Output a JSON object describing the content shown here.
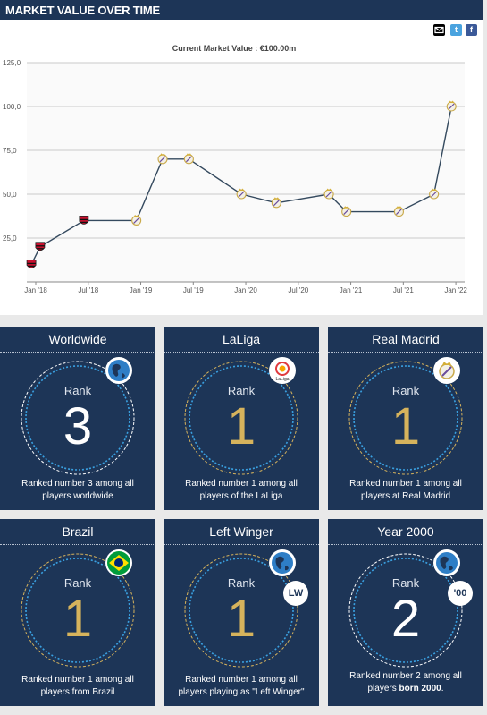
{
  "header": {
    "title": "MARKET VALUE OVER TIME"
  },
  "share": {
    "email_icon": "envelope-icon",
    "twitter_icon": "twitter-icon",
    "facebook_icon": "facebook-icon",
    "twitter_label": "t",
    "facebook_label": "f"
  },
  "chart_data": {
    "type": "line",
    "title": "Current Market Value : €100.00m",
    "xlabel": "",
    "ylabel": "",
    "ylim": [
      0,
      125
    ],
    "y_ticks": [
      "125,0",
      "100,0",
      "75,0",
      "50,0",
      "25,0"
    ],
    "x_ticks": [
      "Jan '18",
      "Jul '18",
      "Jan '19",
      "Jul '19",
      "Jan '20",
      "Jul '20",
      "Jan '21",
      "Jul '21",
      "Jan '22"
    ],
    "grid": true,
    "series": [
      {
        "values": [
          {
            "date": "2017-12",
            "y": 10,
            "club": "Flamengo"
          },
          {
            "date": "2018-01",
            "y": 20,
            "club": "Flamengo"
          },
          {
            "date": "2018-06",
            "y": 35,
            "club": "Flamengo"
          },
          {
            "date": "2018-12",
            "y": 35,
            "club": "Real Madrid"
          },
          {
            "date": "2019-03",
            "y": 70,
            "club": "Real Madrid"
          },
          {
            "date": "2019-06",
            "y": 70,
            "club": "Real Madrid"
          },
          {
            "date": "2019-12",
            "y": 50,
            "club": "Real Madrid"
          },
          {
            "date": "2020-04",
            "y": 45,
            "club": "Real Madrid"
          },
          {
            "date": "2020-10",
            "y": 50,
            "club": "Real Madrid"
          },
          {
            "date": "2020-12",
            "y": 40,
            "club": "Real Madrid"
          },
          {
            "date": "2021-06",
            "y": 40,
            "club": "Real Madrid"
          },
          {
            "date": "2021-10",
            "y": 50,
            "club": "Real Madrid"
          },
          {
            "date": "2021-12",
            "y": 100,
            "club": "Real Madrid"
          }
        ]
      }
    ],
    "colors": {
      "line": "#34495e",
      "flamengo": "#c8102e",
      "real_madrid": "#d4af37"
    }
  },
  "cards": [
    {
      "title": "Worldwide",
      "rank_label": "Rank",
      "rank": "3",
      "desc": "Ranked number 3 among all players worldwide",
      "badge_icon": "globe-icon",
      "num_color": "#ffffff"
    },
    {
      "title": "LaLiga",
      "rank_label": "Rank",
      "rank": "1",
      "desc": "Ranked number 1 among all players of the LaLiga",
      "badge_icon": "laliga-logo-icon",
      "num_color": "#d6b35c"
    },
    {
      "title": "Real Madrid",
      "rank_label": "Rank",
      "rank": "1",
      "desc": "Ranked number 1 among all players at Real Madrid",
      "badge_icon": "real-madrid-crest-icon",
      "num_color": "#d6b35c"
    },
    {
      "title": "Brazil",
      "rank_label": "Rank",
      "rank": "1",
      "desc": "Ranked number 1 among all players from Brazil",
      "badge_icon": "brazil-flag-icon",
      "num_color": "#d6b35c"
    },
    {
      "title": "Left Winger",
      "rank_label": "Rank",
      "rank": "1",
      "desc": "Ranked number 1 among all players playing as \"Left Winger\"",
      "badge_icon": "globe-icon",
      "badge_text": "LW",
      "num_color": "#d6b35c"
    },
    {
      "title": "Year 2000",
      "rank_label": "Rank",
      "rank": "2",
      "desc_pre": "Ranked number 2 among all players ",
      "desc_bold": "born 2000",
      "desc_post": ".",
      "badge_icon": "globe-icon",
      "badge_text": "'00",
      "num_color": "#ffffff"
    }
  ]
}
